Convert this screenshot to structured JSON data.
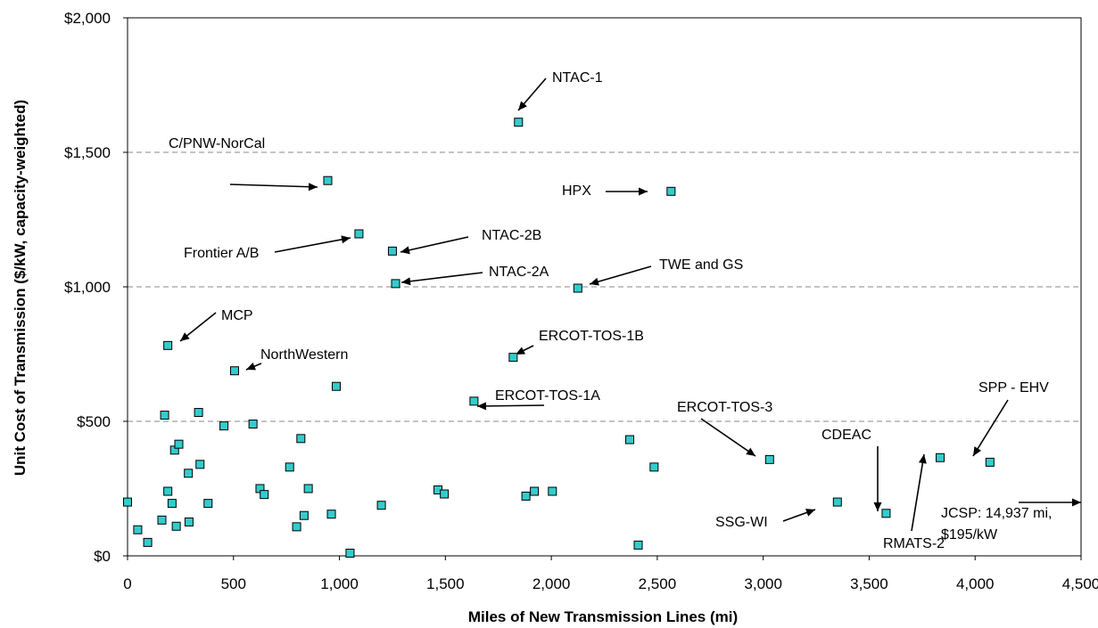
{
  "chart_data": {
    "type": "scatter",
    "xlabel": "Miles of New Transmission Lines (mi)",
    "ylabel": "Unit Cost of Transmission ($/kW, capacity-weighted)",
    "xlim": [
      0,
      4500
    ],
    "ylim": [
      0,
      2000
    ],
    "x_ticks": [
      {
        "value": 0,
        "label": "0"
      },
      {
        "value": 500,
        "label": "500"
      },
      {
        "value": 1000,
        "label": "1,000"
      },
      {
        "value": 1500,
        "label": "1,500"
      },
      {
        "value": 2000,
        "label": "2,000"
      },
      {
        "value": 2500,
        "label": "2,500"
      },
      {
        "value": 3000,
        "label": "3,000"
      },
      {
        "value": 3500,
        "label": "3,500"
      },
      {
        "value": 4000,
        "label": "4,000"
      },
      {
        "value": 4500,
        "label": "4,500"
      }
    ],
    "y_ticks": [
      {
        "value": 0,
        "label": "$0"
      },
      {
        "value": 500,
        "label": "$500"
      },
      {
        "value": 1000,
        "label": "$1,000"
      },
      {
        "value": 1500,
        "label": "$1,500"
      },
      {
        "value": 2000,
        "label": "$2,000"
      }
    ],
    "grid": "dashed horizontal at $500, $1,000, $1,500",
    "marker_color": "#33cccc",
    "points": [
      {
        "x": 0,
        "y": 200
      },
      {
        "x": 48,
        "y": 97
      },
      {
        "x": 95,
        "y": 50
      },
      {
        "x": 162,
        "y": 133
      },
      {
        "x": 175,
        "y": 523
      },
      {
        "x": 190,
        "y": 240
      },
      {
        "x": 210,
        "y": 195
      },
      {
        "x": 222,
        "y": 393
      },
      {
        "x": 230,
        "y": 110
      },
      {
        "x": 242,
        "y": 415
      },
      {
        "x": 287,
        "y": 307
      },
      {
        "x": 290,
        "y": 126
      },
      {
        "x": 335,
        "y": 533
      },
      {
        "x": 342,
        "y": 340
      },
      {
        "x": 380,
        "y": 195
      },
      {
        "x": 455,
        "y": 483
      },
      {
        "x": 592,
        "y": 490
      },
      {
        "x": 625,
        "y": 250
      },
      {
        "x": 645,
        "y": 228
      },
      {
        "x": 765,
        "y": 330
      },
      {
        "x": 798,
        "y": 108
      },
      {
        "x": 818,
        "y": 436
      },
      {
        "x": 833,
        "y": 150
      },
      {
        "x": 853,
        "y": 250
      },
      {
        "x": 962,
        "y": 155
      },
      {
        "x": 985,
        "y": 630
      },
      {
        "x": 1050,
        "y": 10
      },
      {
        "x": 1198,
        "y": 188
      },
      {
        "x": 1465,
        "y": 245
      },
      {
        "x": 1495,
        "y": 230
      },
      {
        "x": 1880,
        "y": 222
      },
      {
        "x": 1920,
        "y": 240
      },
      {
        "x": 2005,
        "y": 240
      },
      {
        "x": 2370,
        "y": 432
      },
      {
        "x": 2410,
        "y": 40
      },
      {
        "x": 2485,
        "y": 330
      },
      {
        "x": 945,
        "y": 1395,
        "label": "C/PNW-NorCal"
      },
      {
        "x": 1845,
        "y": 1612,
        "label": "NTAC-1"
      },
      {
        "x": 2565,
        "y": 1355,
        "label": "HPX"
      },
      {
        "x": 1092,
        "y": 1197,
        "label": "Frontier A/B"
      },
      {
        "x": 1250,
        "y": 1133,
        "label": "NTAC-2B"
      },
      {
        "x": 1265,
        "y": 1012,
        "label": "NTAC-2A"
      },
      {
        "x": 2125,
        "y": 995,
        "label": "TWE and GS"
      },
      {
        "x": 190,
        "y": 782,
        "label": "MCP"
      },
      {
        "x": 505,
        "y": 688,
        "label": "NorthWestern"
      },
      {
        "x": 1820,
        "y": 738,
        "label": "ERCOT-TOS-1B"
      },
      {
        "x": 1635,
        "y": 575,
        "label": "ERCOT-TOS-1A"
      },
      {
        "x": 3030,
        "y": 358,
        "label": "ERCOT-TOS-3"
      },
      {
        "x": 3350,
        "y": 200,
        "label": "SSG-WI"
      },
      {
        "x": 3580,
        "y": 158,
        "label": "CDEAC"
      },
      {
        "x": 3835,
        "y": 365,
        "label": "RMATS-2"
      },
      {
        "x": 4070,
        "y": 348,
        "label": "SPP - EHV"
      }
    ],
    "annotations": [
      {
        "text": "JCSP: 14,937 mi,",
        "line2": "$195/kW",
        "note": "off-chart point, arrow pointing right"
      }
    ]
  }
}
